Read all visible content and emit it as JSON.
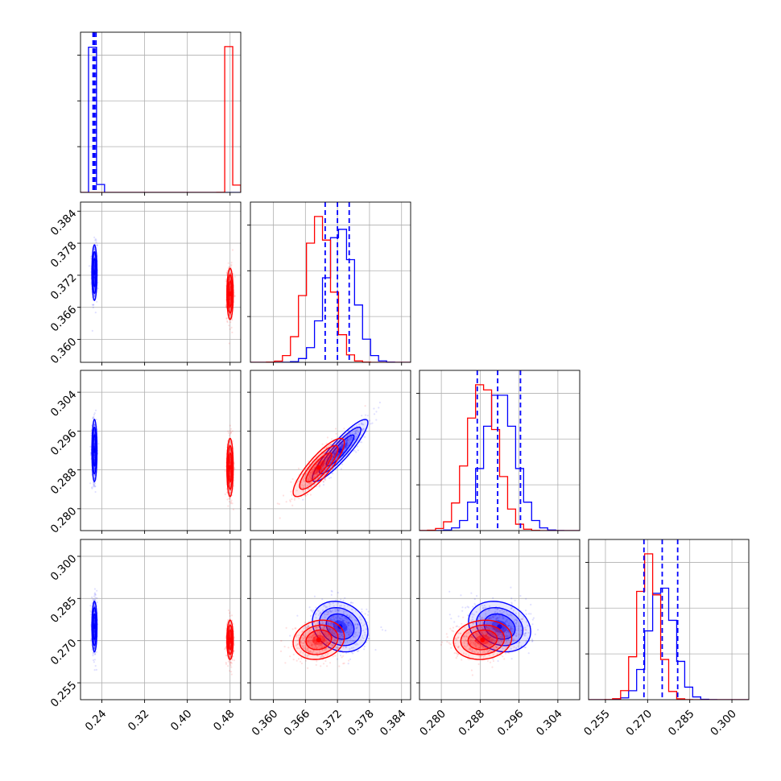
{
  "chart_data": {
    "type": "corner",
    "colors": {
      "a": "#0000ff",
      "b": "#ff0000"
    },
    "grid": true,
    "n_params": 4,
    "params": [
      {
        "range": [
          0.2,
          0.5
        ],
        "ticks": [
          0.24,
          0.32,
          0.4,
          0.48
        ],
        "tick_labels": [
          "0.24",
          "0.32",
          "0.40",
          "0.48"
        ]
      },
      {
        "range": [
          0.3557,
          0.3857
        ],
        "ticks": [
          0.36,
          0.366,
          0.372,
          0.378,
          0.384
        ],
        "tick_labels": [
          "0.360",
          "0.366",
          "0.372",
          "0.378",
          "0.384"
        ]
      },
      {
        "range": [
          0.2755,
          0.3085
        ],
        "ticks": [
          0.28,
          0.288,
          0.296,
          0.304
        ],
        "tick_labels": [
          "0.280",
          "0.288",
          "0.296",
          "0.304"
        ]
      },
      {
        "range": [
          0.249,
          0.306
        ],
        "ticks": [
          0.255,
          0.27,
          0.285,
          0.3
        ],
        "tick_labels": [
          "0.255",
          "0.270",
          "0.285",
          "0.300"
        ]
      }
    ],
    "series": [
      {
        "key": "a",
        "color": "#0000ff",
        "mean": [
          0.2261,
          0.3725,
          0.292,
          0.275
        ],
        "sigma": [
          0.0024,
          0.0026,
          0.0032,
          0.0045
        ],
        "quantiles": [
          [
            0.2235,
            0.2261,
            0.229
          ],
          [
            0.3697,
            0.372,
            0.3742
          ],
          [
            0.2874,
            0.2916,
            0.2963
          ],
          [
            0.2687,
            0.2752,
            0.2807
          ]
        ],
        "corr": [
          [
            1,
            0,
            0,
            0
          ],
          [
            0,
            1,
            0.9,
            -0.2
          ],
          [
            0,
            0.9,
            1,
            -0.2
          ],
          [
            0,
            -0.2,
            -0.2,
            1
          ]
        ]
      },
      {
        "key": "b",
        "color": "#ff0000",
        "mean": [
          0.48,
          0.3685,
          0.2885,
          0.2703
        ],
        "sigma": [
          0.003,
          0.0024,
          0.003,
          0.0035
        ],
        "quantiles": [],
        "corr": [
          [
            1,
            0,
            0,
            0
          ],
          [
            0,
            1,
            0.85,
            0.15
          ],
          [
            0,
            0.85,
            1,
            0.1
          ],
          [
            0,
            0.15,
            0.1,
            1
          ]
        ]
      }
    ]
  }
}
